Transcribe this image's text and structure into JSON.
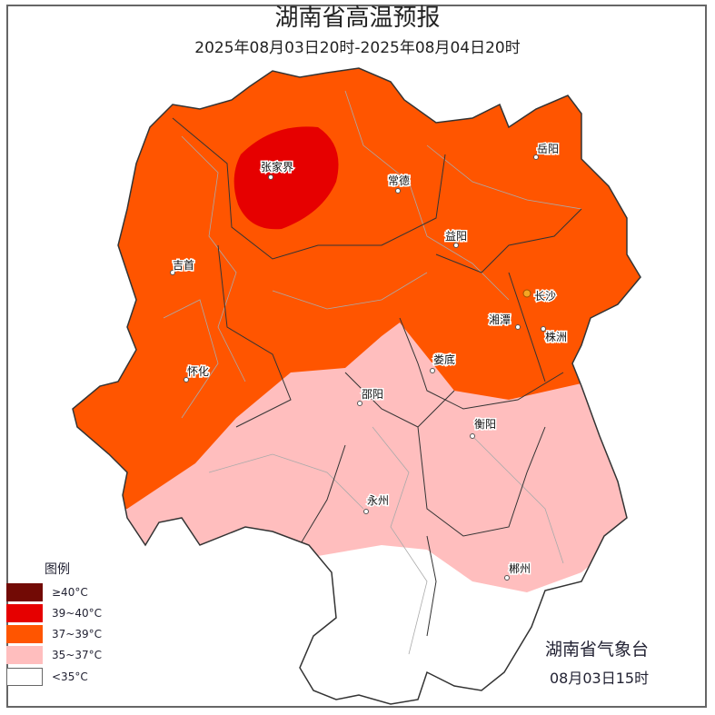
{
  "header": {
    "title": "湖南省高温预报",
    "period": "2025年08月03日20时-2025年08月04日20时"
  },
  "legend": {
    "title": "图例",
    "items": [
      {
        "label": "≥40°C",
        "color": "#720A05"
      },
      {
        "label": "39~40°C",
        "color": "#E60000"
      },
      {
        "label": "37~39°C",
        "color": "#FF5500"
      },
      {
        "label": "35~37°C",
        "color": "#FFBEBE"
      },
      {
        "label": "<35°C",
        "color": "#FFFFFF"
      }
    ]
  },
  "cities": {
    "zhangjiajie": "张家界",
    "changde": "常德",
    "yueyang": "岳阳",
    "yiyang": "益阳",
    "jishou": "吉首",
    "changsha": "长沙",
    "xiangtan": "湘潭",
    "zhuzhou": "株洲",
    "huaihua": "怀化",
    "loudi": "娄底",
    "shaoyang": "邵阳",
    "hengyang": "衡阳",
    "yongzhou": "永州",
    "chenzhou": "郴州"
  },
  "footer": {
    "issuer": "湖南省气象台",
    "issue_time": "08月03日15时"
  }
}
